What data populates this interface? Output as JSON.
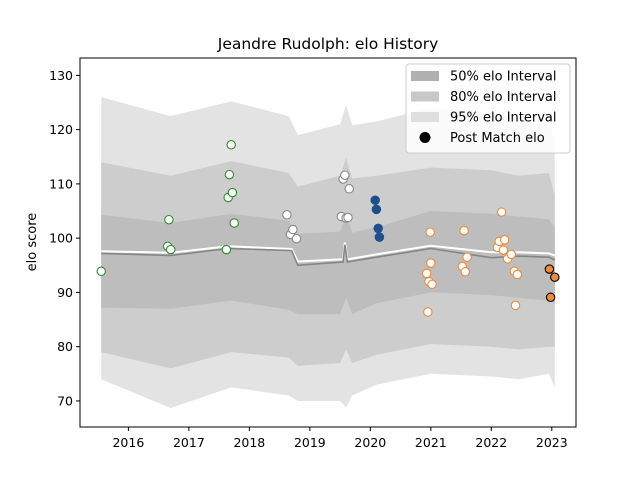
{
  "chart_data": {
    "type": "scatter",
    "title": "Jeandre Rudolph: elo History",
    "xlabel": "",
    "ylabel": "elo score",
    "xlim": [
      2015.2,
      2023.4
    ],
    "ylim": [
      65.2,
      133.2
    ],
    "x_ticks": [
      2016,
      2017,
      2018,
      2019,
      2020,
      2021,
      2022,
      2023
    ],
    "y_ticks": [
      70,
      80,
      90,
      100,
      110,
      120,
      130
    ],
    "legend": {
      "position": "top-right",
      "entries": [
        {
          "label": "50% elo Interval",
          "color": "#b0b0b0",
          "kind": "band"
        },
        {
          "label": "80% elo Interval",
          "color": "#c8c8c8",
          "kind": "band"
        },
        {
          "label": "95% elo Interval",
          "color": "#dfdfdf",
          "kind": "band"
        },
        {
          "label": "Post Match elo",
          "color": "#000000",
          "kind": "marker"
        }
      ]
    },
    "bands": {
      "x": [
        2015.55,
        2016.7,
        2017.7,
        2018.65,
        2018.8,
        2019.5,
        2019.6,
        2019.7,
        2020.1,
        2021.0,
        2022.0,
        2022.45,
        2022.95,
        2023.05
      ],
      "upper95": [
        126.0,
        122.5,
        125.2,
        122.5,
        119.0,
        121.0,
        124.5,
        120.8,
        121.5,
        124.0,
        123.0,
        122.0,
        122.5,
        117.5
      ],
      "upper80": [
        114.0,
        111.5,
        114.2,
        112.0,
        109.5,
        111.5,
        114.8,
        111.0,
        111.5,
        113.0,
        112.5,
        111.5,
        112.0,
        108.0
      ],
      "upper50": [
        104.3,
        102.8,
        104.5,
        103.2,
        100.8,
        101.2,
        104.5,
        101.0,
        102.0,
        105.0,
        104.5,
        104.0,
        103.5,
        102.0
      ],
      "lower50": [
        87.2,
        87.0,
        88.5,
        86.8,
        86.0,
        86.0,
        89.0,
        86.0,
        88.0,
        90.0,
        89.5,
        89.0,
        88.5,
        88.0
      ],
      "lower80": [
        79.0,
        76.0,
        79.0,
        78.0,
        76.5,
        77.0,
        79.5,
        77.0,
        78.5,
        80.5,
        80.0,
        79.5,
        80.0,
        80.0
      ],
      "lower95": [
        74.0,
        68.7,
        72.5,
        71.0,
        70.0,
        70.0,
        68.8,
        71.0,
        73.0,
        75.0,
        74.5,
        74.0,
        75.0,
        72.5
      ]
    },
    "mean_line": {
      "x": [
        2015.55,
        2016.7,
        2017.65,
        2018.7,
        2018.8,
        2019.55,
        2019.58,
        2019.62,
        2020.1,
        2021.0,
        2022.0,
        2022.45,
        2022.95,
        2023.05
      ],
      "y": [
        97.2,
        96.8,
        98.1,
        97.7,
        95.0,
        95.6,
        98.8,
        95.6,
        96.5,
        98.1,
        96.4,
        96.7,
        96.5,
        96.0
      ]
    },
    "median_line": {
      "x": [
        2015.55,
        2016.7,
        2017.65,
        2018.7,
        2018.8,
        2019.55,
        2019.58,
        2019.62,
        2020.1,
        2021.0,
        2022.0,
        2022.45,
        2022.95,
        2023.05
      ],
      "y": [
        97.6,
        97.3,
        98.5,
        98.0,
        95.7,
        96.1,
        99.2,
        96.1,
        97.0,
        98.6,
        97.4,
        97.4,
        97.2,
        96.8
      ]
    },
    "series": [
      {
        "color": "#2e8b2e",
        "fill": "#ffffff",
        "points": [
          [
            2015.55,
            93.9
          ],
          [
            2016.65,
            98.5
          ],
          [
            2016.67,
            103.4
          ],
          [
            2016.7,
            97.9
          ],
          [
            2017.62,
            97.9
          ],
          [
            2017.65,
            107.5
          ],
          [
            2017.67,
            111.7
          ],
          [
            2017.7,
            117.2
          ],
          [
            2017.72,
            108.4
          ],
          [
            2017.75,
            102.8
          ]
        ]
      },
      {
        "color": "#888888",
        "fill": "#ffffff",
        "points": [
          [
            2018.62,
            104.3
          ],
          [
            2018.68,
            100.7
          ],
          [
            2018.72,
            101.6
          ],
          [
            2018.78,
            99.9
          ],
          [
            2019.52,
            104.0
          ],
          [
            2019.55,
            110.9
          ],
          [
            2019.58,
            111.6
          ],
          [
            2019.6,
            103.7
          ],
          [
            2019.63,
            103.8
          ],
          [
            2019.65,
            109.1
          ]
        ]
      },
      {
        "color": "#1f4e8c",
        "fill": "#1f4e8c",
        "points": [
          [
            2020.08,
            107.0
          ],
          [
            2020.1,
            105.3
          ],
          [
            2020.13,
            101.8
          ],
          [
            2020.15,
            100.2
          ]
        ]
      },
      {
        "color": "#ee8a3a",
        "fill": "#ffffff",
        "points": [
          [
            2020.93,
            93.5
          ],
          [
            2020.95,
            86.4
          ],
          [
            2020.97,
            92.0
          ],
          [
            2020.99,
            101.1
          ],
          [
            2021.0,
            95.4
          ],
          [
            2021.02,
            91.5
          ],
          [
            2021.52,
            94.8
          ],
          [
            2021.55,
            101.4
          ],
          [
            2021.57,
            93.8
          ],
          [
            2021.6,
            96.5
          ],
          [
            2022.1,
            98.3
          ],
          [
            2022.13,
            99.4
          ],
          [
            2022.17,
            104.8
          ],
          [
            2022.2,
            97.8
          ],
          [
            2022.22,
            99.7
          ],
          [
            2022.27,
            96.2
          ],
          [
            2022.33,
            97.0
          ],
          [
            2022.38,
            93.9
          ],
          [
            2022.4,
            87.6
          ],
          [
            2022.43,
            93.3
          ]
        ]
      },
      {
        "color": "#000000",
        "fill": "#ee8a3a",
        "points": [
          [
            2022.96,
            94.3
          ],
          [
            2022.98,
            89.1
          ],
          [
            2023.05,
            92.8
          ]
        ]
      }
    ]
  }
}
